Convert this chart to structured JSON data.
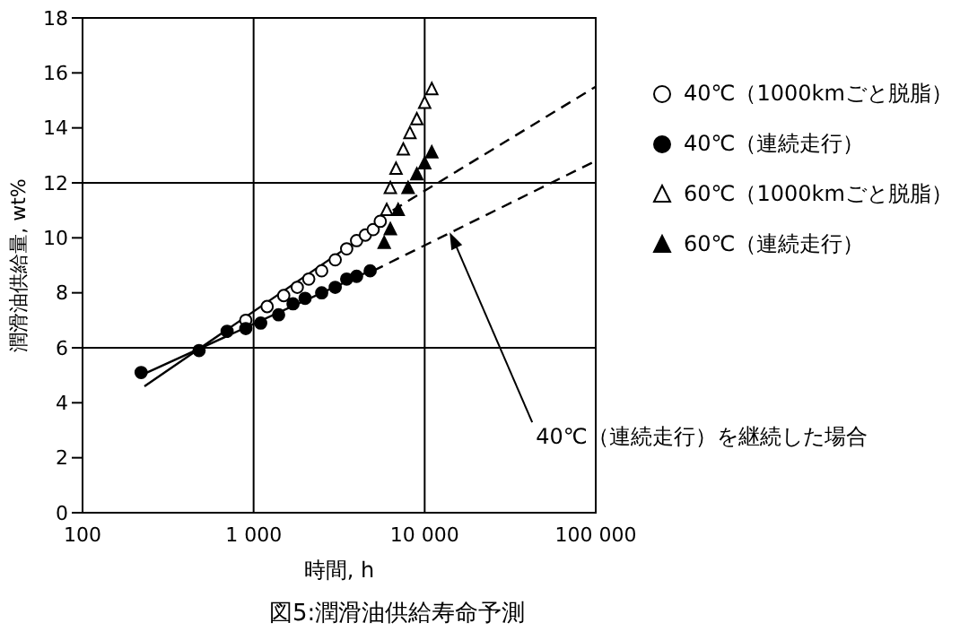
{
  "chart_data": {
    "type": "scatter",
    "title": "図5:潤滑油供給寿命予測",
    "xlabel": "時間, h",
    "ylabel": "潤滑油供給量, wt%",
    "log": "x",
    "xlim": [
      100,
      100000
    ],
    "xticks": [
      100,
      {
        "value": 1000,
        "label": "1 000"
      },
      {
        "value": 10000,
        "label": "10 000"
      },
      {
        "value": 100000,
        "label": "100 000"
      }
    ],
    "ylim": [
      0,
      18
    ],
    "yticks": [
      0,
      2,
      4,
      6,
      8,
      10,
      12,
      14,
      16,
      18
    ],
    "grid": "x",
    "legend": "right",
    "ref_lines": [
      {
        "axis": "y",
        "value": 6,
        "color": "#000000"
      },
      {
        "axis": "y",
        "value": 12,
        "color": "#000000"
      }
    ],
    "annotations": [
      {
        "text": "40℃（連続走行）を継続した場合",
        "x": 14000,
        "y": 10.2
      }
    ],
    "series": [
      {
        "name": "40℃（1000kmごと脱脂）",
        "marker": "circle",
        "color": "#ffffff",
        "x": [
          900,
          1200,
          1500,
          1800,
          2100,
          2500,
          3000,
          3500,
          4000,
          4500,
          5000,
          5500
        ],
        "values": [
          7.0,
          7.5,
          7.9,
          8.2,
          8.5,
          8.8,
          9.2,
          9.6,
          9.9,
          10.1,
          10.3,
          10.6
        ]
      },
      {
        "name": "40℃（連続走行）",
        "marker": "circle",
        "color": "#000000",
        "x": [
          220,
          480,
          700,
          900,
          1100,
          1400,
          1700,
          2000,
          2500,
          3000,
          3500,
          4000,
          4800
        ],
        "values": [
          5.1,
          5.9,
          6.6,
          6.7,
          6.9,
          7.2,
          7.6,
          7.8,
          8.0,
          8.2,
          8.5,
          8.6,
          8.8
        ]
      },
      {
        "name": "60℃（1000kmごと脱脂）",
        "marker": "triangle",
        "color": "#ffffff",
        "x": [
          6000,
          6300,
          6800,
          7500,
          8200,
          9000,
          10000,
          11000
        ],
        "values": [
          11.0,
          11.8,
          12.5,
          13.2,
          13.8,
          14.3,
          14.9,
          15.4
        ]
      },
      {
        "name": "60℃（連続走行）",
        "marker": "triangle",
        "color": "#000000",
        "x": [
          5800,
          6300,
          7000,
          8000,
          9000,
          10000,
          11000
        ],
        "values": [
          9.8,
          10.3,
          11.0,
          11.8,
          12.3,
          12.7,
          13.1
        ]
      },
      {
        "type": "line",
        "color": "#000000",
        "line_style": "solid",
        "x": [
          230,
          5000
        ],
        "values": [
          4.6,
          10.3
        ]
      },
      {
        "type": "line",
        "color": "#000000",
        "line_style": "solid",
        "x": [
          220,
          4800
        ],
        "values": [
          5.0,
          8.8
        ]
      },
      {
        "type": "line",
        "color": "#000000",
        "line_style": "dashed",
        "x": [
          6500,
          100000
        ],
        "values": [
          11.0,
          15.5
        ]
      },
      {
        "type": "line",
        "color": "#000000",
        "line_style": "dashed",
        "x": [
          5000,
          100000
        ],
        "values": [
          8.8,
          12.8
        ]
      }
    ]
  }
}
